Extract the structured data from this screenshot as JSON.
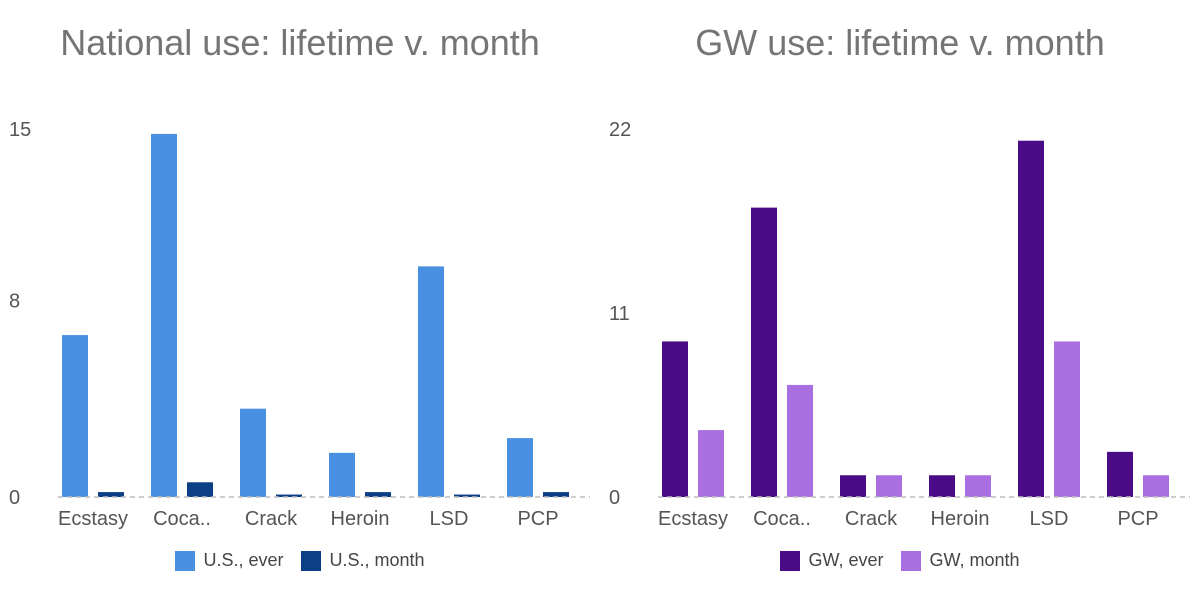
{
  "chart_data": [
    {
      "type": "bar",
      "title": "National use: lifetime v. month",
      "categories": [
        "Ecstasy",
        "Coca..",
        "Crack",
        "Heroin",
        "LSD",
        "PCP"
      ],
      "yticks": [
        "0",
        "8",
        "15"
      ],
      "ylim": [
        0,
        15
      ],
      "series": [
        {
          "name": "U.S., ever",
          "color": "#4A90E2",
          "values": [
            6.6,
            14.8,
            3.6,
            1.8,
            9.4,
            2.4
          ]
        },
        {
          "name": "U.S., month",
          "color": "#0D3F86",
          "values": [
            0.2,
            0.6,
            0.1,
            0.2,
            0.1,
            0.2
          ]
        }
      ],
      "grid": false,
      "legend_position": "bottom"
    },
    {
      "type": "bar",
      "title": "GW use: lifetime v. month",
      "categories": [
        "Ecstasy",
        "Coca..",
        "Crack",
        "Heroin",
        "LSD",
        "PCP"
      ],
      "yticks": [
        "0",
        "11",
        "22"
      ],
      "ylim": [
        0,
        22
      ],
      "series": [
        {
          "name": "GW, ever",
          "color": "#4A0B87",
          "values": [
            9.3,
            17.3,
            1.3,
            1.3,
            21.3,
            2.7
          ]
        },
        {
          "name": "GW, month",
          "color": "#A96FE0",
          "values": [
            4.0,
            6.7,
            1.3,
            1.3,
            9.3,
            1.3
          ]
        }
      ],
      "grid": false,
      "legend_position": "bottom"
    }
  ]
}
